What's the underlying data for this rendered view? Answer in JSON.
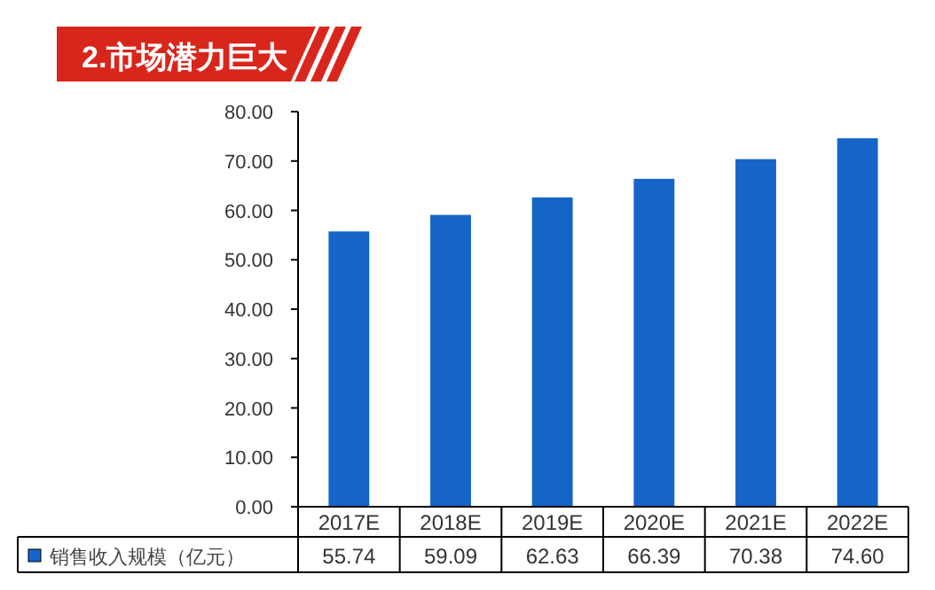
{
  "chart_data": {
    "type": "bar",
    "title": "2.市场潜力巨大",
    "categories": [
      "2017E",
      "2018E",
      "2019E",
      "2020E",
      "2021E",
      "2022E"
    ],
    "series": [
      {
        "name": "销售收入规模（亿元）",
        "color": "#1565c8",
        "values": [
          55.74,
          59.09,
          62.63,
          66.39,
          70.38,
          74.6
        ],
        "value_labels": [
          "55.74",
          "59.09",
          "62.63",
          "66.39",
          "70.38",
          "74.60"
        ]
      }
    ],
    "ylim": [
      0,
      80
    ],
    "yticks": [
      {
        "value": 0,
        "label": "0.00"
      },
      {
        "value": 10,
        "label": "10.00"
      },
      {
        "value": 20,
        "label": "20.00"
      },
      {
        "value": 30,
        "label": "30.00"
      },
      {
        "value": 40,
        "label": "40.00"
      },
      {
        "value": 50,
        "label": "50.00"
      },
      {
        "value": 60,
        "label": "60.00"
      },
      {
        "value": 70,
        "label": "70.00"
      },
      {
        "value": 80,
        "label": "80.00"
      }
    ],
    "grid": false,
    "legend": "bottom left"
  }
}
